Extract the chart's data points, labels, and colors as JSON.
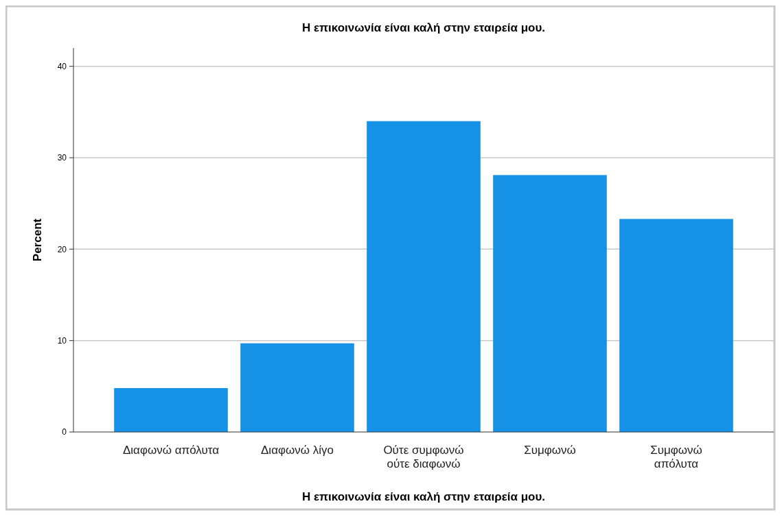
{
  "chart_data": {
    "type": "bar",
    "title": "Η επικοινωνία είναι καλή στην εταιρεία μου.",
    "xlabel": "Η επικοινωνία είναι καλή στην εταιρεία μου.",
    "ylabel": "Percent",
    "categories": [
      "Διαφωνώ απόλυτα",
      "Διαφωνώ λίγο",
      "Ούτε συμφωνώ\nούτε διαφωνώ",
      "Συμφωνώ",
      "Συμφωνώ\nαπόλυτα"
    ],
    "values": [
      4.8,
      9.7,
      34.0,
      28.1,
      23.3
    ],
    "color": "#1592e6",
    "ylim": [
      0,
      42
    ],
    "yticks": [
      0,
      10,
      20,
      30,
      40
    ],
    "grid": "y"
  }
}
